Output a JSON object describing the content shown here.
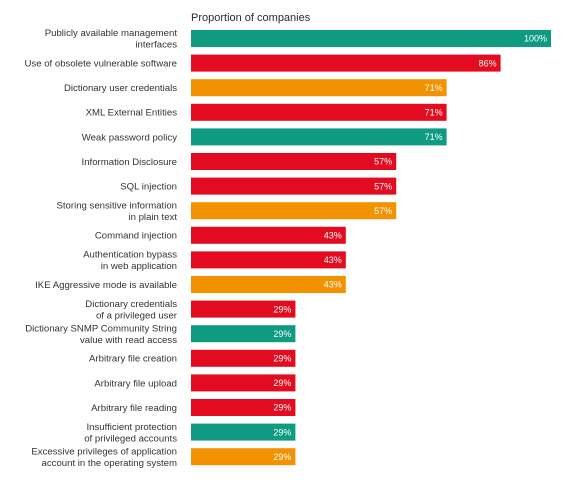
{
  "chart_data": {
    "type": "bar",
    "orientation": "horizontal",
    "title": "Proportion of companies",
    "categories": [
      [
        "Publicly available management",
        "interfaces"
      ],
      [
        "Use of obsolete vulnerable software"
      ],
      [
        "Dictionary user credentials"
      ],
      [
        "XML External Entities"
      ],
      [
        "Weak password policy"
      ],
      [
        "Information Disclosure"
      ],
      [
        "SQL injection"
      ],
      [
        "Storing sensitive information",
        "in plain text"
      ],
      [
        "Command injection"
      ],
      [
        "Authentication bypass",
        "in web application"
      ],
      [
        "IKE Aggressive mode is available"
      ],
      [
        "Dictionary credentials",
        "of a privileged user"
      ],
      [
        "Dictionary SNMP Community String",
        "value with read access"
      ],
      [
        "Arbitrary file creation"
      ],
      [
        "Arbitrary file upload"
      ],
      [
        "Arbitrary file reading"
      ],
      [
        "Insufficient protection",
        "of privileged accounts"
      ],
      [
        "Excessive privileges of application",
        "account in the operating system"
      ]
    ],
    "values": [
      100,
      86,
      71,
      71,
      71,
      57,
      57,
      57,
      43,
      43,
      43,
      29,
      29,
      29,
      29,
      29,
      29,
      29
    ],
    "value_labels": [
      "100%",
      "86%",
      "71%",
      "71%",
      "71%",
      "57%",
      "57%",
      "57%",
      "43%",
      "43%",
      "43%",
      "29%",
      "29%",
      "29%",
      "29%",
      "29%",
      "29%",
      "29%"
    ],
    "bar_colors": [
      "teal",
      "red",
      "orange",
      "red",
      "teal",
      "red",
      "red",
      "orange",
      "red",
      "red",
      "orange",
      "red",
      "teal",
      "red",
      "red",
      "red",
      "teal",
      "orange"
    ],
    "xlim": [
      0,
      100
    ],
    "grid": false,
    "legend": "none",
    "colors": {
      "teal": "#0f9a82",
      "red": "#e30b1f",
      "orange": "#f39200"
    }
  }
}
